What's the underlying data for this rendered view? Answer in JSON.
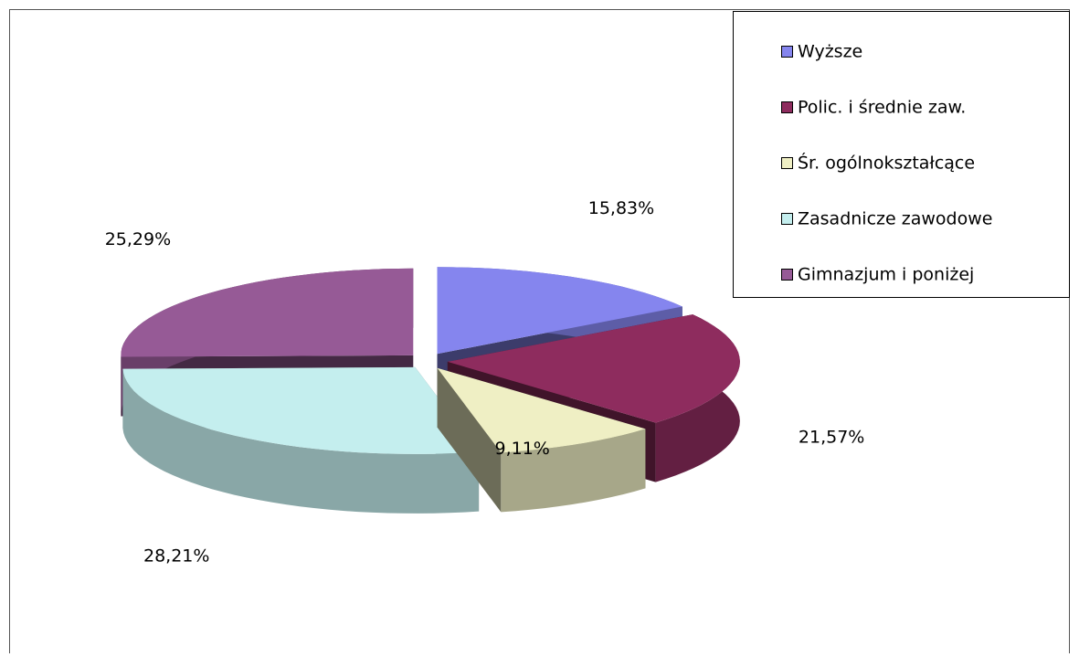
{
  "chart_data": {
    "type": "pie",
    "categories": [
      "Wyższe",
      "Polic. i średnie zaw.",
      "Śr. ogólnokształcące",
      "Zasadnicze zawodowe",
      "Gimnazjum i poniżej"
    ],
    "values": [
      15.83,
      21.57,
      9.11,
      28.21,
      25.29
    ],
    "value_labels": [
      "15,83%",
      "21,57%",
      "9,11%",
      "28,21%",
      "25,29%"
    ],
    "colors": [
      "#8585ee",
      "#8e2c5e",
      "#efefc4",
      "#c4eeee",
      "#965a96"
    ],
    "legend": "top-right"
  }
}
